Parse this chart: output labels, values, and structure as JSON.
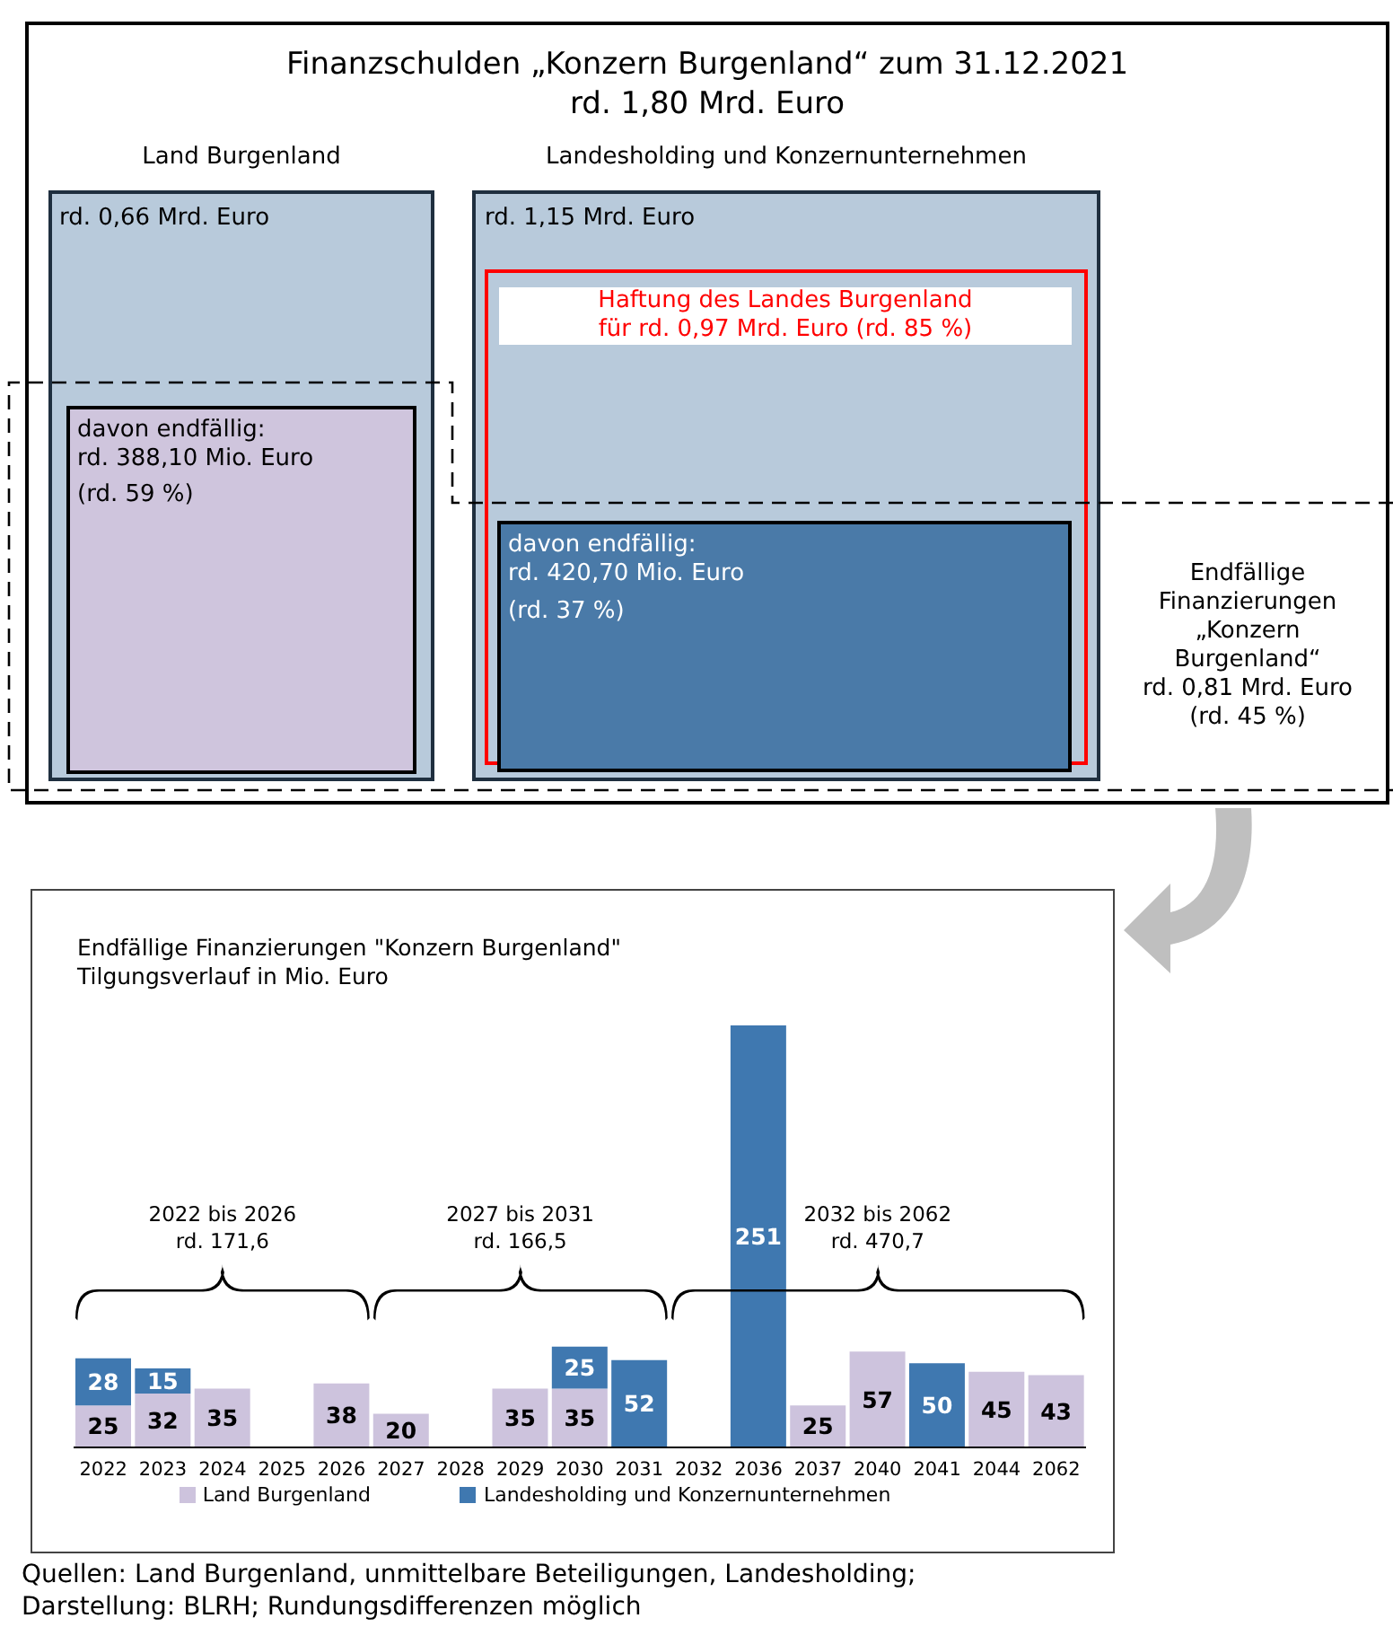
{
  "chart_data": [
    {
      "type": "other",
      "title": "Finanzschulden „Konzern Burgenland“ zum 31.12.2021",
      "subtitle": "rd. 1,80 Mrd. Euro",
      "annotations": [
        "Land Burgenland",
        "Landesholding und Konzernunternehmen",
        "rd. 0,66 Mrd. Euro",
        "davon endfällig:\nrd. 388,10 Mio. Euro",
        "(rd. 59 %)",
        "rd. 1,15 Mrd. Euro",
        "Haftung des Landes Burgenland\nfür rd. 0,97 Mrd. Euro (rd. 85 %)",
        "davon endfällig:\nrd. 420,70 Mio. Euro",
        "(rd. 37 %)",
        "Endfällige\nFinanzierungen\n„Konzern\nBurgenland“\nrd. 0,81 Mrd. Euro\n(rd. 45 %)"
      ]
    },
    {
      "type": "bar",
      "title": "Endfällige Finanzierungen \"Konzern Burgenland\"",
      "subtitle": "Tilgungsverlauf in Mio. Euro",
      "stacked": true,
      "data_labels": true,
      "legend": "bottom",
      "categories": [
        "2022",
        "2023",
        "2024",
        "2025",
        "2026",
        "2027",
        "2028",
        "2029",
        "2030",
        "2031",
        "2032",
        "2036",
        "2037",
        "2040",
        "2041",
        "2044",
        "2062"
      ],
      "series": [
        {
          "name": "Land Burgenland",
          "color": "#cdc3dd",
          "values": [
            25,
            32,
            35,
            null,
            38,
            20,
            null,
            35,
            35,
            null,
            null,
            null,
            25,
            57,
            null,
            45,
            43
          ]
        },
        {
          "name": "Landesholding und Konzernunternehmen",
          "color": "#3f78b0",
          "values": [
            28,
            15,
            null,
            null,
            null,
            null,
            null,
            null,
            25,
            52,
            null,
            251,
            null,
            null,
            50,
            null,
            null
          ]
        }
      ],
      "annotations": [
        "2022 bis 2026\nrd. 171,6",
        "2027 bis 2031\nrd. 166,5",
        "2032 bis 2062\nrd. 470,7",
        "Quellen: Land Burgenland, unmittelbare Beteiligungen, Landesholding;\nDarstellung: BLRH; Rundungsdifferenzen möglich"
      ]
    }
  ]
}
